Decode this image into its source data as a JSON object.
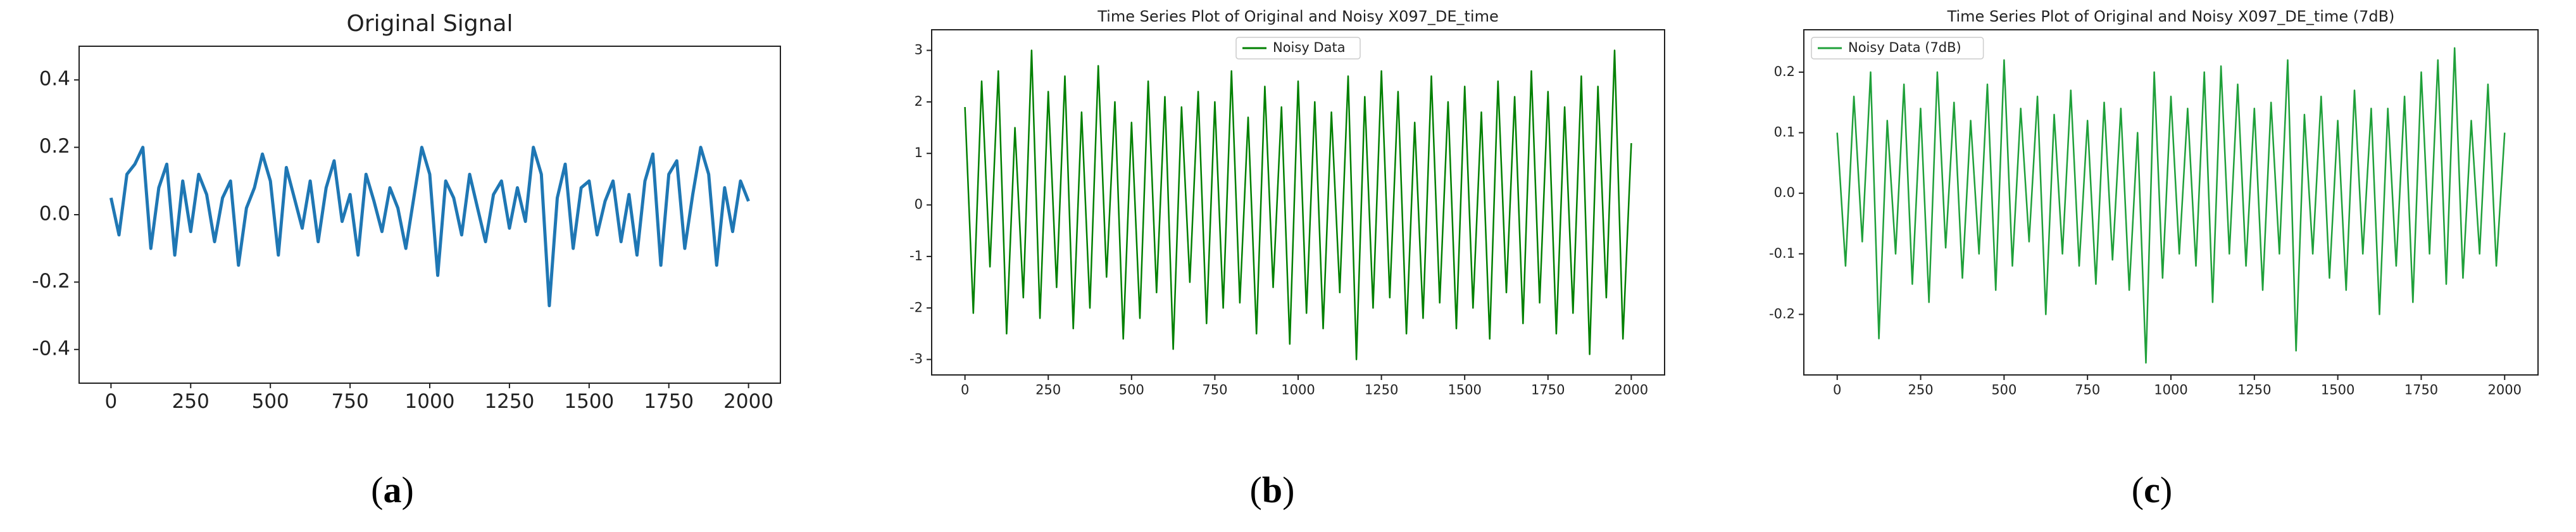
{
  "chart_data": [
    {
      "type": "line",
      "title": "Original Signal",
      "caption": "(a)",
      "x": [
        0,
        25,
        50,
        75,
        100,
        125,
        150,
        175,
        200,
        225,
        250,
        275,
        300,
        325,
        350,
        375,
        400,
        425,
        450,
        475,
        500,
        525,
        550,
        575,
        600,
        625,
        650,
        675,
        700,
        725,
        750,
        775,
        800,
        825,
        850,
        875,
        900,
        925,
        950,
        975,
        1000,
        1025,
        1050,
        1075,
        1100,
        1125,
        1150,
        1175,
        1200,
        1225,
        1250,
        1275,
        1300,
        1325,
        1350,
        1375,
        1400,
        1425,
        1450,
        1475,
        1500,
        1525,
        1550,
        1575,
        1600,
        1625,
        1650,
        1675,
        1700,
        1725,
        1750,
        1775,
        1800,
        1825,
        1850,
        1875,
        1900,
        1925,
        1950,
        1975,
        2000
      ],
      "series": [
        {
          "color": "#1f77b4",
          "values": [
            0.05,
            -0.06,
            0.12,
            0.15,
            0.2,
            -0.1,
            0.08,
            0.15,
            -0.12,
            0.1,
            -0.05,
            0.12,
            0.06,
            -0.08,
            0.05,
            0.1,
            -0.15,
            0.02,
            0.08,
            0.18,
            0.1,
            -0.12,
            0.14,
            0.05,
            -0.04,
            0.1,
            -0.08,
            0.08,
            0.16,
            -0.02,
            0.06,
            -0.12,
            0.12,
            0.04,
            -0.05,
            0.08,
            0.02,
            -0.1,
            0.05,
            0.2,
            0.12,
            -0.18,
            0.1,
            0.05,
            -0.06,
            0.12,
            0.02,
            -0.08,
            0.06,
            0.1,
            -0.04,
            0.08,
            -0.02,
            0.2,
            0.12,
            -0.27,
            0.05,
            0.15,
            -0.1,
            0.08,
            0.1,
            -0.06,
            0.04,
            0.1,
            -0.08,
            0.06,
            -0.12,
            0.1,
            0.18,
            -0.15,
            0.12,
            0.16,
            -0.1,
            0.06,
            0.2,
            0.12,
            -0.15,
            0.08,
            -0.05,
            0.1,
            0.04
          ]
        }
      ],
      "xlim": [
        -100,
        2100
      ],
      "ylim": [
        -0.5,
        0.5
      ],
      "xticks": [
        0,
        250,
        500,
        750,
        1000,
        1250,
        1500,
        1750,
        2000
      ],
      "yticks": [
        -0.4,
        -0.2,
        0.0,
        0.2,
        0.4
      ],
      "grid": false
    },
    {
      "type": "line",
      "title": "Time Series Plot of Original and Noisy X097_DE_time",
      "caption": "(b)",
      "x": [
        0,
        25,
        50,
        75,
        100,
        125,
        150,
        175,
        200,
        225,
        250,
        275,
        300,
        325,
        350,
        375,
        400,
        425,
        450,
        475,
        500,
        525,
        550,
        575,
        600,
        625,
        650,
        675,
        700,
        725,
        750,
        775,
        800,
        825,
        850,
        875,
        900,
        925,
        950,
        975,
        1000,
        1025,
        1050,
        1075,
        1100,
        1125,
        1150,
        1175,
        1200,
        1225,
        1250,
        1275,
        1300,
        1325,
        1350,
        1375,
        1400,
        1425,
        1450,
        1475,
        1500,
        1525,
        1550,
        1575,
        1600,
        1625,
        1650,
        1675,
        1700,
        1725,
        1750,
        1775,
        1800,
        1825,
        1850,
        1875,
        1900,
        1925,
        1950,
        1975,
        2000
      ],
      "series": [
        {
          "name": "Noisy Data",
          "color": "#008000",
          "values": [
            1.9,
            -2.1,
            2.4,
            -1.2,
            2.6,
            -2.5,
            1.5,
            -1.8,
            3.0,
            -2.2,
            2.2,
            -1.6,
            2.5,
            -2.4,
            1.8,
            -2.0,
            2.7,
            -1.4,
            2.0,
            -2.6,
            1.6,
            -2.2,
            2.4,
            -1.7,
            2.1,
            -2.8,
            1.9,
            -1.5,
            2.2,
            -2.3,
            2.0,
            -2.0,
            2.6,
            -1.9,
            1.7,
            -2.5,
            2.3,
            -1.6,
            1.9,
            -2.7,
            2.4,
            -2.1,
            2.0,
            -2.4,
            1.8,
            -1.7,
            2.5,
            -3.0,
            2.1,
            -2.0,
            2.6,
            -1.8,
            2.2,
            -2.5,
            1.6,
            -2.2,
            2.5,
            -1.9,
            2.0,
            -2.4,
            2.3,
            -2.0,
            1.8,
            -2.6,
            2.4,
            -1.7,
            2.1,
            -2.3,
            2.6,
            -1.9,
            2.2,
            -2.5,
            1.9,
            -2.1,
            2.5,
            -2.9,
            2.3,
            -1.8,
            3.0,
            -2.6,
            1.2
          ]
        }
      ],
      "xlim": [
        -100,
        2100
      ],
      "ylim": [
        -3.3,
        3.4
      ],
      "xticks": [
        0,
        250,
        500,
        750,
        1000,
        1250,
        1500,
        1750,
        2000
      ],
      "yticks": [
        -3,
        -2,
        -1,
        0,
        1,
        2,
        3
      ],
      "grid": false,
      "legend": "upper center"
    },
    {
      "type": "line",
      "title": "Time Series Plot of Original and Noisy X097_DE_time (7dB)",
      "caption": "(c)",
      "x": [
        0,
        25,
        50,
        75,
        100,
        125,
        150,
        175,
        200,
        225,
        250,
        275,
        300,
        325,
        350,
        375,
        400,
        425,
        450,
        475,
        500,
        525,
        550,
        575,
        600,
        625,
        650,
        675,
        700,
        725,
        750,
        775,
        800,
        825,
        850,
        875,
        900,
        925,
        950,
        975,
        1000,
        1025,
        1050,
        1075,
        1100,
        1125,
        1150,
        1175,
        1200,
        1225,
        1250,
        1275,
        1300,
        1325,
        1350,
        1375,
        1400,
        1425,
        1450,
        1475,
        1500,
        1525,
        1550,
        1575,
        1600,
        1625,
        1650,
        1675,
        1700,
        1725,
        1750,
        1775,
        1800,
        1825,
        1850,
        1875,
        1900,
        1925,
        1950,
        1975,
        2000
      ],
      "series": [
        {
          "name": "Noisy Data (7dB)",
          "color": "#1fa03a",
          "values": [
            0.1,
            -0.12,
            0.16,
            -0.08,
            0.2,
            -0.24,
            0.12,
            -0.1,
            0.18,
            -0.15,
            0.14,
            -0.18,
            0.2,
            -0.09,
            0.15,
            -0.14,
            0.12,
            -0.1,
            0.18,
            -0.16,
            0.22,
            -0.12,
            0.14,
            -0.08,
            0.16,
            -0.2,
            0.13,
            -0.1,
            0.17,
            -0.12,
            0.12,
            -0.15,
            0.15,
            -0.11,
            0.14,
            -0.16,
            0.1,
            -0.28,
            0.2,
            -0.14,
            0.16,
            -0.1,
            0.14,
            -0.12,
            0.2,
            -0.18,
            0.21,
            -0.1,
            0.18,
            -0.12,
            0.14,
            -0.16,
            0.15,
            -0.1,
            0.22,
            -0.26,
            0.13,
            -0.1,
            0.16,
            -0.14,
            0.12,
            -0.16,
            0.17,
            -0.1,
            0.14,
            -0.2,
            0.14,
            -0.12,
            0.16,
            -0.18,
            0.2,
            -0.1,
            0.22,
            -0.15,
            0.24,
            -0.14,
            0.12,
            -0.1,
            0.18,
            -0.12,
            0.1
          ]
        }
      ],
      "xlim": [
        -100,
        2100
      ],
      "ylim": [
        -0.3,
        0.27
      ],
      "xticks": [
        0,
        250,
        500,
        750,
        1000,
        1250,
        1500,
        1750,
        2000
      ],
      "yticks": [
        -0.2,
        -0.1,
        0.0,
        0.1,
        0.2
      ],
      "grid": false,
      "legend": "upper left"
    }
  ]
}
